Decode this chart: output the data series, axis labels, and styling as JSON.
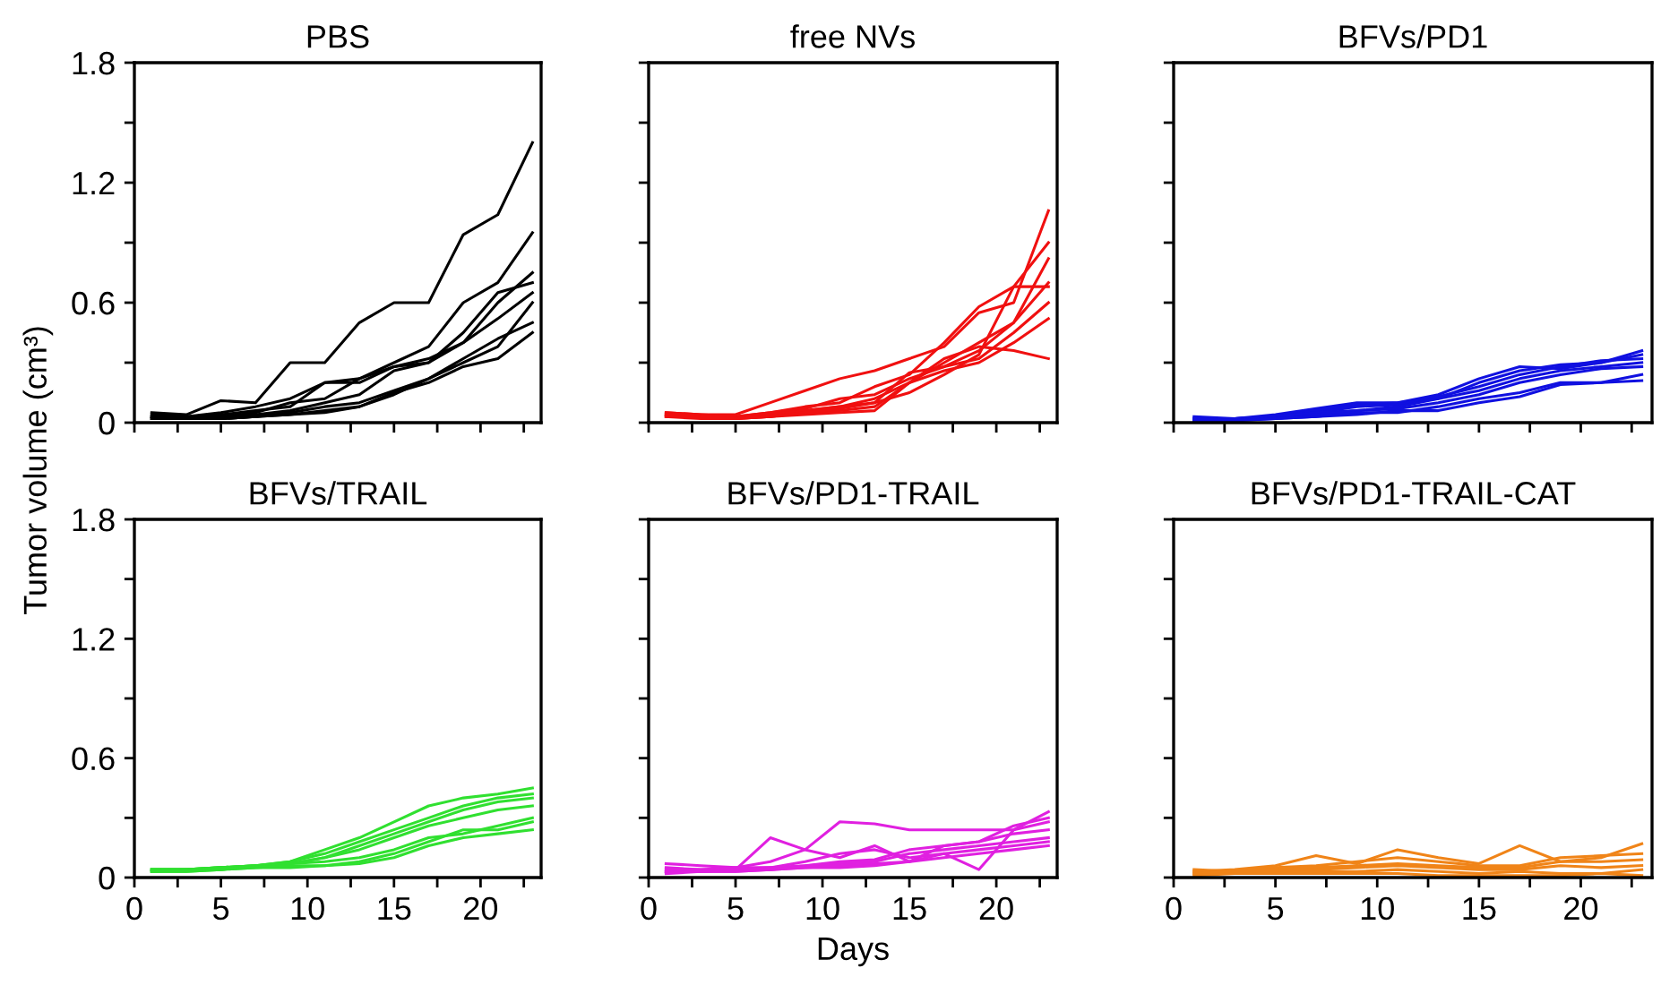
{
  "chart_data": [
    {
      "type": "line",
      "title": "PBS",
      "ylabel": "Tumor volume (cm³)",
      "x": [
        1,
        3,
        5,
        7,
        9,
        11,
        13,
        15,
        17,
        19,
        21,
        23
      ],
      "xlim": [
        0,
        23.5
      ],
      "ylim": [
        0,
        1.8
      ],
      "xticks": [
        0,
        {
          "value": 2.5,
          "label": null
        },
        5,
        {
          "value": 7.5,
          "label": null
        },
        10,
        {
          "value": 12.5,
          "label": null
        },
        15,
        {
          "value": 17.5,
          "label": null
        },
        20,
        {
          "value": 22.5,
          "label": null
        }
      ],
      "yticks": [
        0,
        {
          "value": 0.3,
          "label": null
        },
        0.6,
        {
          "value": 0.9,
          "label": null
        },
        1.2,
        {
          "value": 1.5,
          "label": null
        },
        1.8
      ],
      "tick_labels": "y",
      "grid": false,
      "marker": "none",
      "line_style": "solid",
      "series": [
        {
          "color": "#000000",
          "values": [
            0.05,
            0.04,
            0.11,
            0.1,
            0.3,
            0.3,
            0.5,
            0.6,
            0.6,
            0.94,
            1.04,
            1.4
          ]
        },
        {
          "color": "#000000",
          "values": [
            0.04,
            0.03,
            0.05,
            0.08,
            0.12,
            0.2,
            0.22,
            0.3,
            0.38,
            0.6,
            0.7,
            0.95
          ]
        },
        {
          "color": "#000000",
          "values": [
            0.03,
            0.03,
            0.04,
            0.06,
            0.08,
            0.2,
            0.2,
            0.28,
            0.3,
            0.45,
            0.65,
            0.7
          ]
        },
        {
          "color": "#000000",
          "values": [
            0.03,
            0.02,
            0.03,
            0.05,
            0.1,
            0.12,
            0.22,
            0.28,
            0.32,
            0.4,
            0.6,
            0.75
          ]
        },
        {
          "color": "#000000",
          "values": [
            0.03,
            0.02,
            0.03,
            0.04,
            0.06,
            0.1,
            0.14,
            0.26,
            0.3,
            0.4,
            0.52,
            0.65
          ]
        },
        {
          "color": "#000000",
          "values": [
            0.02,
            0.02,
            0.02,
            0.03,
            0.05,
            0.08,
            0.1,
            0.16,
            0.22,
            0.3,
            0.38,
            0.6
          ]
        },
        {
          "color": "#000000",
          "values": [
            0.02,
            0.02,
            0.02,
            0.03,
            0.04,
            0.06,
            0.08,
            0.14,
            0.22,
            0.32,
            0.42,
            0.5
          ]
        },
        {
          "color": "#000000",
          "values": [
            0.02,
            0.02,
            0.02,
            0.03,
            0.04,
            0.05,
            0.08,
            0.15,
            0.2,
            0.28,
            0.32,
            0.45
          ]
        }
      ]
    },
    {
      "type": "line",
      "title": "free NVs",
      "x": [
        1,
        3,
        5,
        7,
        9,
        11,
        13,
        15,
        17,
        19,
        21,
        23
      ],
      "xlim": [
        0,
        23.5
      ],
      "ylim": [
        0,
        1.8
      ],
      "xticks": [
        0,
        {
          "value": 2.5,
          "label": null
        },
        5,
        {
          "value": 7.5,
          "label": null
        },
        10,
        {
          "value": 12.5,
          "label": null
        },
        15,
        {
          "value": 17.5,
          "label": null
        },
        20,
        {
          "value": 22.5,
          "label": null
        }
      ],
      "yticks": [
        0,
        {
          "value": 0.3,
          "label": null
        },
        0.6,
        {
          "value": 0.9,
          "label": null
        },
        1.2,
        {
          "value": 1.5,
          "label": null
        },
        1.8
      ],
      "tick_labels": false,
      "grid": false,
      "marker": "none",
      "line_style": "solid",
      "series": [
        {
          "color": "#f01010",
          "values": [
            0.05,
            0.04,
            0.04,
            0.1,
            0.16,
            0.22,
            0.26,
            0.32,
            0.38,
            0.55,
            0.6,
            1.06
          ]
        },
        {
          "color": "#f01010",
          "values": [
            0.05,
            0.04,
            0.03,
            0.05,
            0.08,
            0.1,
            0.18,
            0.24,
            0.4,
            0.58,
            0.68,
            0.9
          ]
        },
        {
          "color": "#f01010",
          "values": [
            0.04,
            0.03,
            0.03,
            0.04,
            0.06,
            0.08,
            0.12,
            0.2,
            0.3,
            0.4,
            0.5,
            0.7
          ]
        },
        {
          "color": "#f01010",
          "values": [
            0.04,
            0.03,
            0.03,
            0.05,
            0.07,
            0.12,
            0.14,
            0.22,
            0.28,
            0.36,
            0.5,
            0.82
          ]
        },
        {
          "color": "#f01010",
          "values": [
            0.04,
            0.03,
            0.02,
            0.04,
            0.06,
            0.08,
            0.1,
            0.25,
            0.28,
            0.32,
            0.45,
            0.6
          ]
        },
        {
          "color": "#f01010",
          "values": [
            0.03,
            0.03,
            0.02,
            0.03,
            0.05,
            0.06,
            0.08,
            0.2,
            0.26,
            0.3,
            0.4,
            0.52
          ]
        },
        {
          "color": "#f01010",
          "values": [
            0.03,
            0.03,
            0.02,
            0.03,
            0.05,
            0.07,
            0.1,
            0.15,
            0.24,
            0.34,
            0.68,
            0.68
          ]
        },
        {
          "color": "#f01010",
          "values": [
            0.03,
            0.02,
            0.02,
            0.03,
            0.04,
            0.05,
            0.06,
            0.2,
            0.32,
            0.38,
            0.36,
            0.32
          ]
        }
      ]
    },
    {
      "type": "line",
      "title": "BFVs/PD1",
      "x": [
        1,
        3,
        5,
        7,
        9,
        11,
        13,
        15,
        17,
        19,
        21,
        23
      ],
      "xlim": [
        0,
        23.5
      ],
      "ylim": [
        0,
        1.8
      ],
      "xticks": [
        0,
        {
          "value": 2.5,
          "label": null
        },
        5,
        {
          "value": 7.5,
          "label": null
        },
        10,
        {
          "value": 12.5,
          "label": null
        },
        15,
        {
          "value": 17.5,
          "label": null
        },
        20,
        {
          "value": 22.5,
          "label": null
        }
      ],
      "yticks": [
        0,
        {
          "value": 0.3,
          "label": null
        },
        0.6,
        {
          "value": 0.9,
          "label": null
        },
        1.2,
        {
          "value": 1.5,
          "label": null
        },
        1.8
      ],
      "tick_labels": false,
      "grid": false,
      "marker": "none",
      "line_style": "solid",
      "series": [
        {
          "color": "#1010e0",
          "values": [
            0.02,
            0.02,
            0.04,
            0.07,
            0.1,
            0.1,
            0.14,
            0.22,
            0.28,
            0.27,
            0.3,
            0.36
          ]
        },
        {
          "color": "#1010e0",
          "values": [
            0.02,
            0.02,
            0.03,
            0.06,
            0.09,
            0.1,
            0.12,
            0.2,
            0.26,
            0.29,
            0.3,
            0.34
          ]
        },
        {
          "color": "#1010e0",
          "values": [
            0.03,
            0.02,
            0.03,
            0.05,
            0.08,
            0.09,
            0.13,
            0.18,
            0.24,
            0.28,
            0.31,
            0.32
          ]
        },
        {
          "color": "#1010e0",
          "values": [
            0.02,
            0.02,
            0.03,
            0.05,
            0.06,
            0.08,
            0.12,
            0.16,
            0.22,
            0.26,
            0.28,
            0.3
          ]
        },
        {
          "color": "#1010e0",
          "values": [
            0.01,
            0.02,
            0.02,
            0.04,
            0.06,
            0.07,
            0.1,
            0.14,
            0.2,
            0.24,
            0.27,
            0.28
          ]
        },
        {
          "color": "#1010e0",
          "values": [
            0.02,
            0.01,
            0.02,
            0.03,
            0.05,
            0.05,
            0.08,
            0.12,
            0.15,
            0.2,
            0.2,
            0.24
          ]
        },
        {
          "color": "#1010e0",
          "values": [
            0.01,
            0.01,
            0.02,
            0.03,
            0.04,
            0.06,
            0.06,
            0.1,
            0.13,
            0.19,
            0.2,
            0.21
          ]
        }
      ]
    },
    {
      "type": "line",
      "title": "BFVs/TRAIL",
      "x": [
        1,
        3,
        5,
        7,
        9,
        11,
        13,
        15,
        17,
        19,
        21,
        23
      ],
      "xlim": [
        0,
        23.5
      ],
      "ylim": [
        0,
        1.8
      ],
      "xticks": [
        0,
        {
          "value": 2.5,
          "label": null
        },
        5,
        {
          "value": 7.5,
          "label": null
        },
        10,
        {
          "value": 12.5,
          "label": null
        },
        15,
        {
          "value": 17.5,
          "label": null
        },
        20,
        {
          "value": 22.5,
          "label": null
        }
      ],
      "yticks": [
        0,
        {
          "value": 0.3,
          "label": null
        },
        0.6,
        {
          "value": 0.9,
          "label": null
        },
        1.2,
        {
          "value": 1.5,
          "label": null
        },
        1.8
      ],
      "grid": false,
      "marker": "none",
      "line_style": "solid",
      "series": [
        {
          "color": "#30e030",
          "values": [
            0.04,
            0.04,
            0.05,
            0.06,
            0.08,
            0.14,
            0.2,
            0.28,
            0.36,
            0.4,
            0.42,
            0.45
          ]
        },
        {
          "color": "#30e030",
          "values": [
            0.04,
            0.04,
            0.05,
            0.06,
            0.08,
            0.12,
            0.18,
            0.24,
            0.3,
            0.36,
            0.4,
            0.42
          ]
        },
        {
          "color": "#30e030",
          "values": [
            0.04,
            0.04,
            0.05,
            0.06,
            0.07,
            0.1,
            0.16,
            0.22,
            0.28,
            0.34,
            0.38,
            0.4
          ]
        },
        {
          "color": "#30e030",
          "values": [
            0.04,
            0.04,
            0.05,
            0.06,
            0.07,
            0.1,
            0.14,
            0.2,
            0.26,
            0.3,
            0.34,
            0.36
          ]
        },
        {
          "color": "#30e030",
          "values": [
            0.03,
            0.04,
            0.04,
            0.06,
            0.07,
            0.08,
            0.1,
            0.14,
            0.2,
            0.22,
            0.26,
            0.3
          ]
        },
        {
          "color": "#30e030",
          "values": [
            0.03,
            0.03,
            0.04,
            0.05,
            0.06,
            0.06,
            0.08,
            0.12,
            0.18,
            0.24,
            0.24,
            0.28
          ]
        },
        {
          "color": "#30e030",
          "values": [
            0.03,
            0.03,
            0.04,
            0.05,
            0.05,
            0.06,
            0.07,
            0.1,
            0.16,
            0.2,
            0.22,
            0.24
          ]
        }
      ]
    },
    {
      "type": "line",
      "title": "BFVs/PD1-TRAIL",
      "xlabel": "Days",
      "x": [
        1,
        3,
        5,
        7,
        9,
        11,
        13,
        15,
        17,
        19,
        21,
        23
      ],
      "xlim": [
        0,
        23.5
      ],
      "ylim": [
        0,
        1.8
      ],
      "xticks": [
        0,
        {
          "value": 2.5,
          "label": null
        },
        5,
        {
          "value": 7.5,
          "label": null
        },
        10,
        {
          "value": 12.5,
          "label": null
        },
        15,
        {
          "value": 17.5,
          "label": null
        },
        20,
        {
          "value": 22.5,
          "label": null
        }
      ],
      "yticks": [
        0,
        {
          "value": 0.3,
          "label": null
        },
        0.6,
        {
          "value": 0.9,
          "label": null
        },
        1.2,
        {
          "value": 1.5,
          "label": null
        },
        1.8
      ],
      "tick_labels": "x",
      "grid": false,
      "marker": "none",
      "line_style": "solid",
      "series": [
        {
          "color": "#e020e0",
          "values": [
            0.07,
            0.06,
            0.05,
            0.08,
            0.14,
            0.28,
            0.27,
            0.24,
            0.24,
            0.24,
            0.24,
            0.33
          ]
        },
        {
          "color": "#e020e0",
          "values": [
            0.05,
            0.04,
            0.04,
            0.2,
            0.14,
            0.1,
            0.16,
            0.08,
            0.16,
            0.18,
            0.26,
            0.3
          ]
        },
        {
          "color": "#e020e0",
          "values": [
            0.04,
            0.04,
            0.05,
            0.05,
            0.08,
            0.12,
            0.14,
            0.1,
            0.12,
            0.04,
            0.24,
            0.28
          ]
        },
        {
          "color": "#e020e0",
          "values": [
            0.03,
            0.03,
            0.04,
            0.05,
            0.06,
            0.08,
            0.09,
            0.14,
            0.16,
            0.18,
            0.22,
            0.24
          ]
        },
        {
          "color": "#e020e0",
          "values": [
            0.03,
            0.03,
            0.04,
            0.04,
            0.06,
            0.07,
            0.08,
            0.12,
            0.14,
            0.16,
            0.18,
            0.2
          ]
        },
        {
          "color": "#e020e0",
          "values": [
            0.03,
            0.03,
            0.03,
            0.04,
            0.05,
            0.06,
            0.07,
            0.08,
            0.12,
            0.14,
            0.16,
            0.18
          ]
        },
        {
          "color": "#e020e0",
          "values": [
            0.02,
            0.03,
            0.03,
            0.04,
            0.05,
            0.05,
            0.06,
            0.08,
            0.1,
            0.12,
            0.14,
            0.16
          ]
        }
      ]
    },
    {
      "type": "line",
      "title": "BFVs/PD1-TRAIL-CAT",
      "x": [
        1,
        3,
        5,
        7,
        9,
        11,
        13,
        15,
        17,
        19,
        21,
        23
      ],
      "xlim": [
        0,
        23.5
      ],
      "ylim": [
        0,
        1.8
      ],
      "xticks": [
        0,
        {
          "value": 2.5,
          "label": null
        },
        5,
        {
          "value": 7.5,
          "label": null
        },
        10,
        {
          "value": 12.5,
          "label": null
        },
        15,
        {
          "value": 17.5,
          "label": null
        },
        20,
        {
          "value": 22.5,
          "label": null
        }
      ],
      "yticks": [
        0,
        {
          "value": 0.3,
          "label": null
        },
        0.6,
        {
          "value": 0.9,
          "label": null
        },
        1.2,
        {
          "value": 1.5,
          "label": null
        },
        1.8
      ],
      "tick_labels": "x",
      "grid": false,
      "marker": "none",
      "line_style": "solid",
      "series": [
        {
          "color": "#f08418",
          "values": [
            0.03,
            0.04,
            0.06,
            0.11,
            0.07,
            0.14,
            0.1,
            0.07,
            0.16,
            0.08,
            0.1,
            0.17
          ]
        },
        {
          "color": "#f08418",
          "values": [
            0.04,
            0.03,
            0.05,
            0.06,
            0.08,
            0.1,
            0.08,
            0.06,
            0.06,
            0.1,
            0.11,
            0.12
          ]
        },
        {
          "color": "#f08418",
          "values": [
            0.03,
            0.03,
            0.04,
            0.05,
            0.06,
            0.07,
            0.06,
            0.05,
            0.05,
            0.08,
            0.08,
            0.09
          ]
        },
        {
          "color": "#f08418",
          "values": [
            0.02,
            0.03,
            0.03,
            0.04,
            0.05,
            0.06,
            0.05,
            0.04,
            0.04,
            0.06,
            0.05,
            0.06
          ]
        },
        {
          "color": "#f08418",
          "values": [
            0.02,
            0.02,
            0.02,
            0.03,
            0.03,
            0.04,
            0.03,
            0.02,
            0.03,
            0.02,
            0.02,
            0.04
          ]
        },
        {
          "color": "#f08418",
          "values": [
            0.01,
            0.02,
            0.02,
            0.02,
            0.02,
            0.02,
            0.01,
            0.01,
            0.01,
            0.01,
            0.02,
            0.01
          ]
        }
      ]
    }
  ]
}
